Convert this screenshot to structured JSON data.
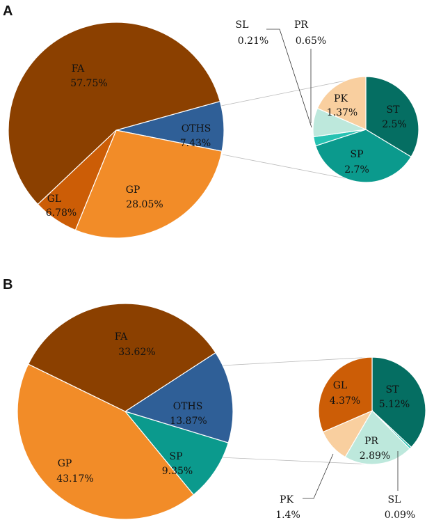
{
  "chart_data": [
    {
      "type": "pie-of-pie",
      "panel": "A",
      "main": [
        {
          "label": "FA",
          "value": "57.75%",
          "pct": 57.75,
          "color": "#8b4000"
        },
        {
          "label": "OTHS",
          "value": "7.43%",
          "pct": 7.43,
          "color": "#2f5f97"
        },
        {
          "label": "GP",
          "value": "28.05%",
          "pct": 28.05,
          "color": "#f28c28"
        },
        {
          "label": "GL",
          "value": "6.78%",
          "pct": 6.78,
          "color": "#cc5d06"
        }
      ],
      "sub": [
        {
          "label": "ST",
          "value": "2.5%",
          "pct": 2.5,
          "color": "#056e62"
        },
        {
          "label": "SP",
          "value": "2.7%",
          "pct": 2.7,
          "color": "#0b9a8d"
        },
        {
          "label": "SL",
          "value": "0.21%",
          "pct": 0.21,
          "color": "#26c2b2"
        },
        {
          "label": "PR",
          "value": "0.65%",
          "pct": 0.65,
          "color": "#bde8dc"
        },
        {
          "label": "PK",
          "value": "1.37%",
          "pct": 1.37,
          "color": "#f9cf9f"
        }
      ]
    },
    {
      "type": "pie-of-pie",
      "panel": "B",
      "main": [
        {
          "label": "FA",
          "value": "33.62%",
          "pct": 33.62,
          "color": "#8b4000"
        },
        {
          "label": "OTHS",
          "value": "13.87%",
          "pct": 13.87,
          "color": "#2f5f97"
        },
        {
          "label": "SP",
          "value": "9.35%",
          "pct": 9.35,
          "color": "#0b9a8d"
        },
        {
          "label": "GP",
          "value": "43.17%",
          "pct": 43.17,
          "color": "#f28c28"
        }
      ],
      "sub": [
        {
          "label": "ST",
          "value": "5.12%",
          "pct": 5.12,
          "color": "#056e62"
        },
        {
          "label": "SL",
          "value": "0.09%",
          "pct": 0.09,
          "color": "#26c2b2"
        },
        {
          "label": "PR",
          "value": "2.89%",
          "pct": 2.89,
          "color": "#bde8dc"
        },
        {
          "label": "PK",
          "value": "1.4%",
          "pct": 1.4,
          "color": "#f9cf9f"
        },
        {
          "label": "GL",
          "value": "4.37%",
          "pct": 4.37,
          "color": "#cc5d06"
        }
      ]
    }
  ]
}
